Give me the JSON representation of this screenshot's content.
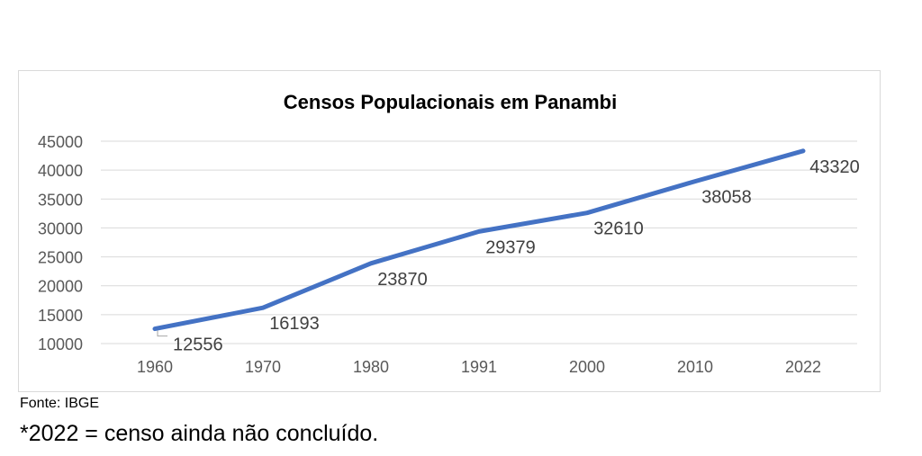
{
  "chart_data": {
    "type": "line",
    "title": "Censos Populacionais em Panambi",
    "xlabel": "",
    "ylabel": "",
    "categories": [
      "1960",
      "1970",
      "1980",
      "1991",
      "2000",
      "2010",
      "2022"
    ],
    "series": [
      {
        "values": [
          12556,
          16193,
          23870,
          29379,
          32610,
          38058,
          43320
        ]
      }
    ],
    "ylim": [
      10000,
      45000
    ],
    "yticks": [
      "10000",
      "15000",
      "20000",
      "25000",
      "30000",
      "35000",
      "40000",
      "45000"
    ],
    "grid": true,
    "legend": "none",
    "line_color": "#4472c4",
    "grid_color": "#d9d9d9",
    "label_color": "#404040",
    "tick_color": "#595959"
  },
  "notes": {
    "source": "Fonte: IBGE",
    "footnote": "*2022 = censo ainda não concluído."
  }
}
